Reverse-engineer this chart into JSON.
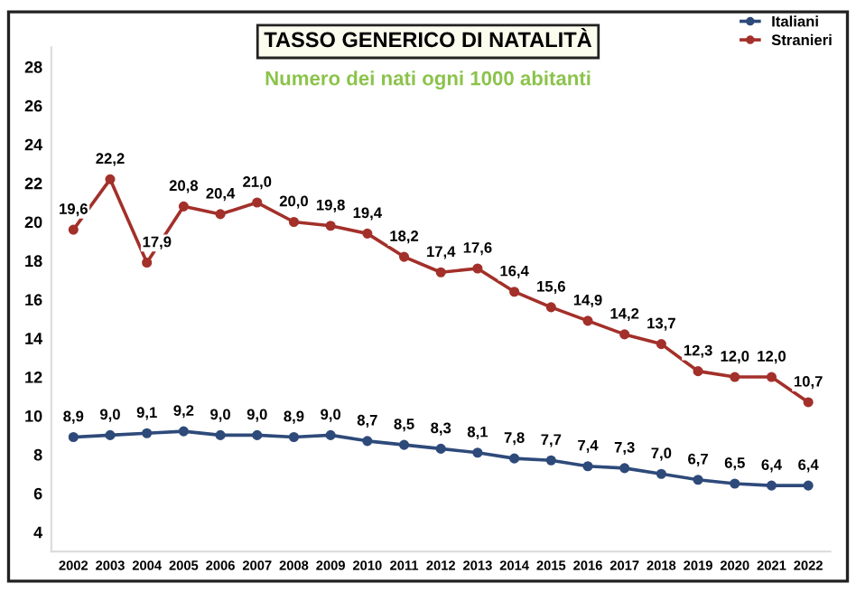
{
  "chart_data": {
    "type": "line",
    "title": "TASSO GENERICO DI NATALITÀ",
    "subtitle": "Numero dei nati ogni 1000 abitanti",
    "categories": [
      "2002",
      "2003",
      "2004",
      "2005",
      "2006",
      "2007",
      "2008",
      "2009",
      "2010",
      "2011",
      "2012",
      "2013",
      "2014",
      "2015",
      "2016",
      "2017",
      "2018",
      "2019",
      "2020",
      "2021",
      "2022"
    ],
    "series": [
      {
        "name": "Italiani",
        "color": "#2e4a7a",
        "values": [
          8.9,
          9.0,
          9.1,
          9.2,
          9.0,
          9.0,
          8.9,
          9.0,
          8.7,
          8.5,
          8.3,
          8.1,
          7.8,
          7.7,
          7.4,
          7.3,
          7.0,
          6.7,
          6.5,
          6.4,
          6.4
        ],
        "value_labels": [
          "8,9",
          "9,0",
          "9,1",
          "9,2",
          "9,0",
          "9,0",
          "8,9",
          "9,0",
          "8,7",
          "8,5",
          "8,3",
          "8,1",
          "7,8",
          "7,7",
          "7,4",
          "7,3",
          "7,0",
          "6,7",
          "6,5",
          "6,4",
          "6,4"
        ]
      },
      {
        "name": "Stranieri",
        "color": "#a3302a",
        "values": [
          19.6,
          22.2,
          17.9,
          20.8,
          20.4,
          21.0,
          20.0,
          19.8,
          19.4,
          18.2,
          17.4,
          17.6,
          16.4,
          15.6,
          14.9,
          14.2,
          13.7,
          12.3,
          12.0,
          12.0,
          10.7
        ],
        "value_labels": [
          "19,6",
          "22,2",
          "17,9",
          "20,8",
          "20,4",
          "21,0",
          "20,0",
          "19,8",
          "19,4",
          "18,2",
          "17,4",
          "17,6",
          "16,4",
          "15,6",
          "14,9",
          "14,2",
          "13,7",
          "12,3",
          "12,0",
          "12,0",
          "10,7"
        ]
      }
    ],
    "ylim": [
      3,
      29
    ],
    "yticks": [
      4,
      6,
      8,
      10,
      12,
      14,
      16,
      18,
      20,
      22,
      24,
      26,
      28
    ],
    "grid": false,
    "legend": "top right",
    "marker": "circle",
    "line_style": "solid"
  }
}
